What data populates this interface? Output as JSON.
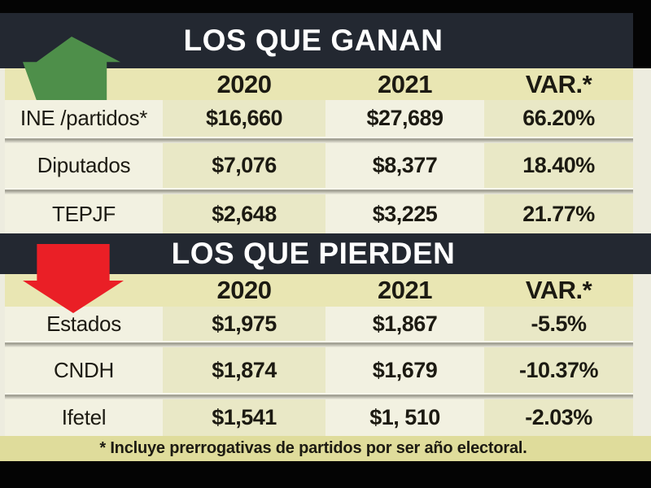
{
  "colors": {
    "header_band": "#232831",
    "frame_black": "#040404",
    "column_header_band": "#e9e6b3",
    "cell_light": "#f2f1e1",
    "cell_dark": "#e9e8c6",
    "footer_band": "#dfdc9b",
    "green_arrow": "#4e8f4a",
    "red_arrow": "#ea1f26",
    "text_dark": "#1c1a12",
    "title_white": "#ffffff"
  },
  "sections": {
    "ganan": {
      "title": "LOS QUE GANAN",
      "arrow_icon": "up-arrow",
      "columns": [
        "2020",
        "2021",
        "VAR.*"
      ],
      "rows": [
        {
          "label": "INE /partidos*",
          "y2020": "$16,660",
          "y2021": "$27,689",
          "variation": "66.20%"
        },
        {
          "label": "Diputados",
          "y2020": "$7,076",
          "y2021": "$8,377",
          "variation": "18.40%"
        },
        {
          "label": "TEPJF",
          "y2020": "$2,648",
          "y2021": "$3,225",
          "variation": "21.77%"
        }
      ]
    },
    "pierden": {
      "title": "LOS QUE PIERDEN",
      "arrow_icon": "down-arrow",
      "columns": [
        "2020",
        "2021",
        "VAR.*"
      ],
      "rows": [
        {
          "label": "Estados",
          "y2020": "$1,975",
          "y2021": "$1,867",
          "variation": "-5.5%"
        },
        {
          "label": "CNDH",
          "y2020": "$1,874",
          "y2021": "$1,679",
          "variation": "-10.37%"
        },
        {
          "label": "Ifetel",
          "y2020": "$1,541",
          "y2021": "$1, 510",
          "variation": "-2.03%"
        }
      ]
    }
  },
  "footnote": "* Incluye prerrogativas de partidos por ser año electoral.",
  "chart_data": [
    {
      "type": "table",
      "title": "LOS QUE GANAN",
      "columns": [
        "",
        "2020",
        "2021",
        "VAR.*"
      ],
      "rows": [
        [
          "INE /partidos*",
          16660,
          27689,
          "66.20%"
        ],
        [
          "Diputados",
          7076,
          8377,
          "18.40%"
        ],
        [
          "TEPJF",
          2648,
          3225,
          "21.77%"
        ]
      ]
    },
    {
      "type": "table",
      "title": "LOS QUE PIERDEN",
      "columns": [
        "",
        "2020",
        "2021",
        "VAR.*"
      ],
      "rows": [
        [
          "Estados",
          1975,
          1867,
          "-5.5%"
        ],
        [
          "CNDH",
          1874,
          1679,
          "-10.37%"
        ],
        [
          "Ifetel",
          1541,
          1510,
          "-2.03%"
        ]
      ]
    }
  ]
}
